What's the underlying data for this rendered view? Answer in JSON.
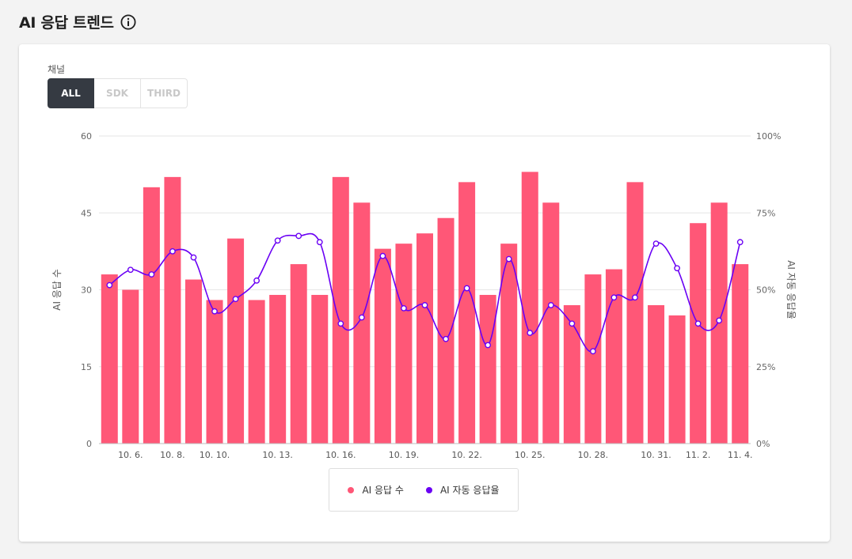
{
  "header": {
    "title": "AI 응답 트렌드"
  },
  "filters": {
    "channel_label": "채널",
    "channel_options": [
      "ALL",
      "SDK",
      "THIRD"
    ],
    "selected": "ALL"
  },
  "colors": {
    "bar": "#ff5777",
    "line": "#6a00f4",
    "grid": "#e6e6e6"
  },
  "chart_data": {
    "type": "bar",
    "x_tick_labels": [
      "10. 6.",
      "10. 8.",
      "10. 10.",
      "10. 13.",
      "10. 16.",
      "10. 19.",
      "10. 22.",
      "10. 25.",
      "10. 28.",
      "10. 31.",
      "11. 2.",
      "11. 4."
    ],
    "x_tick_positions": [
      1,
      3,
      5,
      8,
      11,
      14,
      17,
      20,
      23,
      26,
      28,
      30
    ],
    "ylabel_left": "AI 응답 수",
    "ylabel_right": "AI 자동 응답율",
    "yticks_left": [
      "0",
      "15",
      "30",
      "45",
      "60"
    ],
    "yticks_right": [
      "0%",
      "25%",
      "50%",
      "75%",
      "100%"
    ],
    "ylim_left": [
      0,
      60
    ],
    "ylim_right": [
      0,
      100
    ],
    "series": [
      {
        "name": "AI 응답 수",
        "type": "bar",
        "axis": "left",
        "values": [
          33,
          30,
          50,
          52,
          32,
          28,
          40,
          28,
          29,
          35,
          29,
          52,
          47,
          38,
          39,
          41,
          44,
          51,
          29,
          39,
          53,
          47,
          27,
          33,
          34,
          51,
          27,
          25,
          43,
          47,
          35
        ]
      },
      {
        "name": "AI 자동 응답율",
        "type": "line",
        "axis": "right",
        "values": [
          51.5,
          56.5,
          55,
          62.5,
          60.5,
          43,
          47,
          53,
          66,
          67.5,
          65.5,
          39,
          41,
          61,
          44,
          45,
          34,
          50.5,
          32,
          60,
          36,
          45,
          39,
          30,
          47.5,
          47.5,
          65,
          57,
          39,
          40,
          65.5
        ]
      }
    ],
    "grid": true,
    "legend_position": "bottom-center"
  }
}
